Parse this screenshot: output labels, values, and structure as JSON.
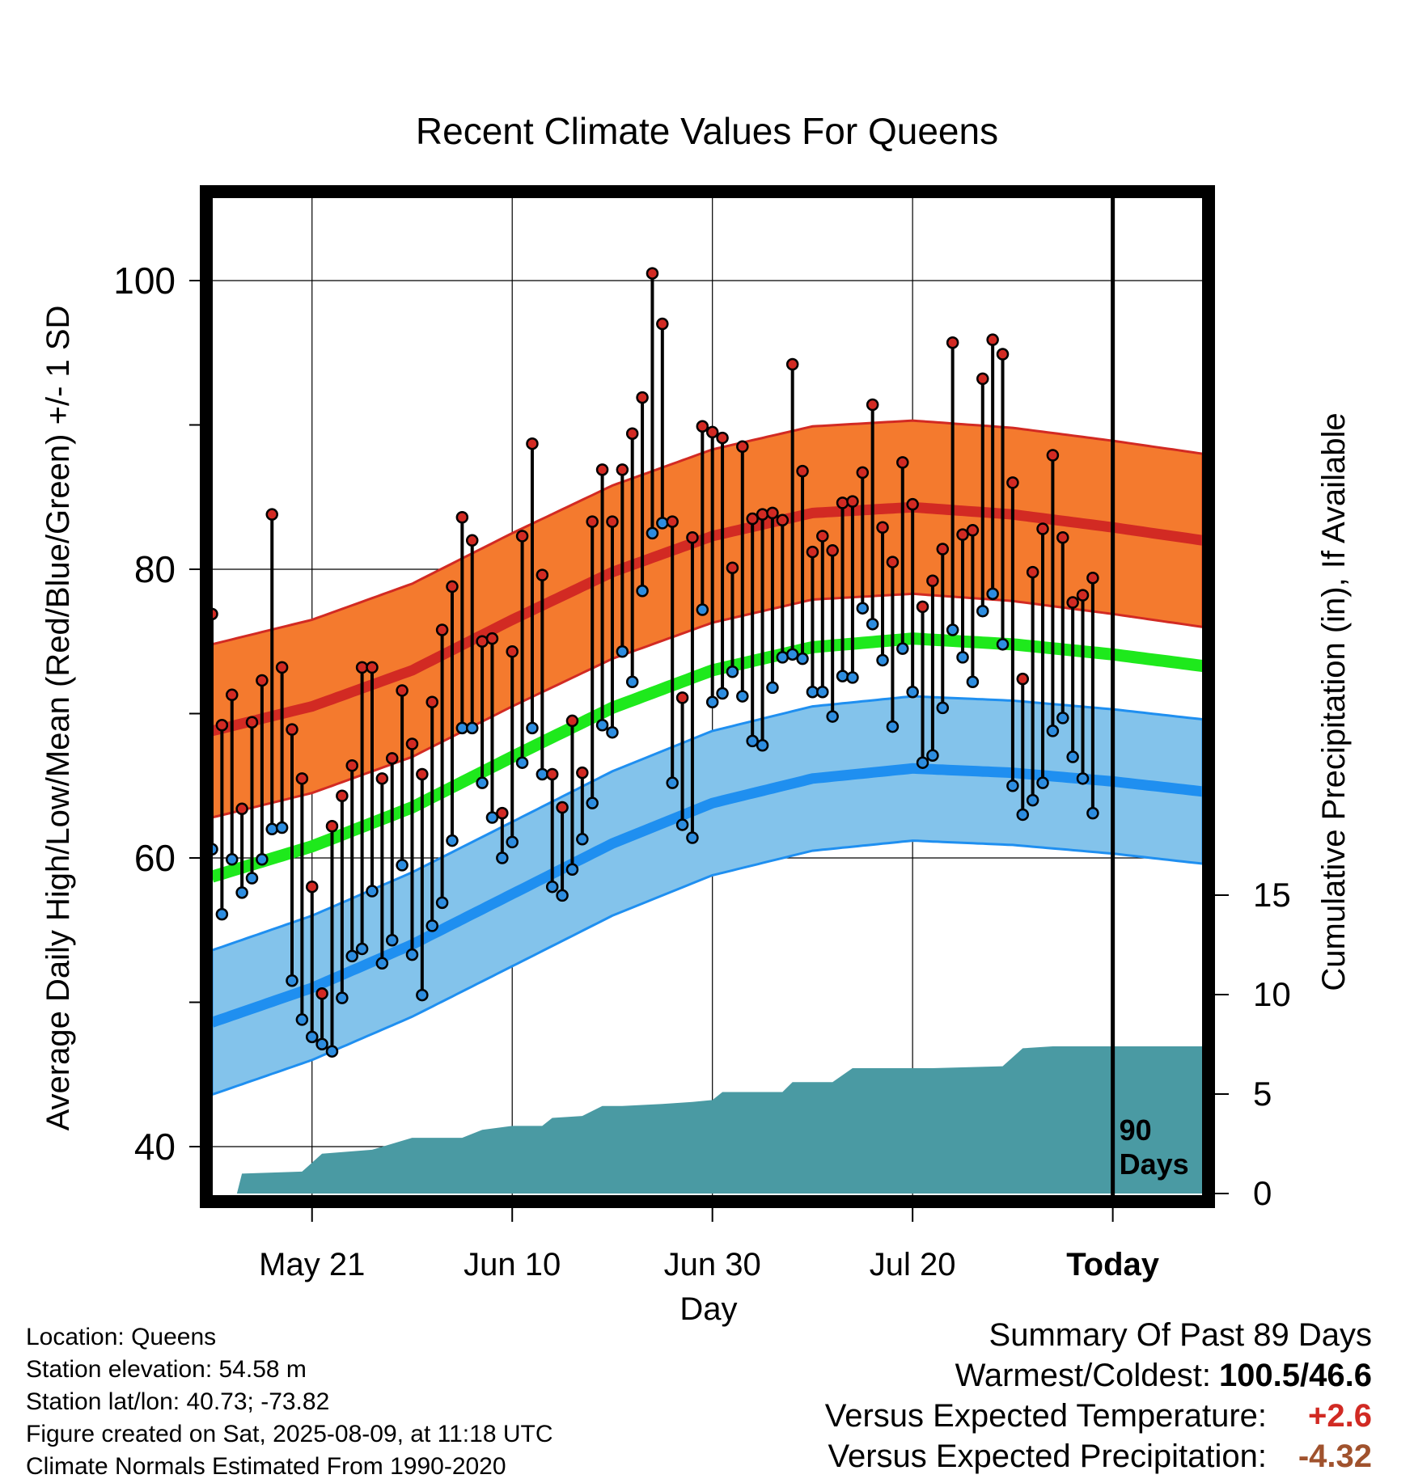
{
  "chart_data": {
    "type": "line",
    "title": "Recent Climate Values For Queens",
    "xlabel": "Day",
    "ylabel": "Average Daily High/Low/Mean (Red/Blue/Green) +/- 1 SD",
    "ylabel_right": "Cumulative Precipitation (in), If Available",
    "ylim": [
      37,
      107
    ],
    "ylim_right": [
      0,
      57
    ],
    "x_range_days_from_today": [
      -90,
      9
    ],
    "x_tick_labels": [
      {
        "label": "May 21",
        "day": -80
      },
      {
        "label": "Jun 10",
        "day": -60
      },
      {
        "label": "Jun 30",
        "day": -40
      },
      {
        "label": "Jul 20",
        "day": -20
      },
      {
        "label": "Today",
        "day": 0
      }
    ],
    "y_ticks": [
      40,
      60,
      80,
      100
    ],
    "y_ticks_right": [
      0,
      5,
      10,
      15
    ],
    "grid": true,
    "today_marker": {
      "day": 0,
      "label_line1": "90",
      "label_line2": "Days"
    },
    "normals": {
      "high_mean": [
        [
          -90,
          68.8
        ],
        [
          -80,
          70.5
        ],
        [
          -70,
          73.0
        ],
        [
          -60,
          76.5
        ],
        [
          -50,
          79.8
        ],
        [
          -40,
          82.3
        ],
        [
          -30,
          83.9
        ],
        [
          -20,
          84.3
        ],
        [
          -10,
          83.8
        ],
        [
          0,
          82.9
        ],
        [
          9,
          82.0
        ]
      ],
      "high_sd": 6.0,
      "low_mean": [
        [
          -90,
          48.6
        ],
        [
          -80,
          51.0
        ],
        [
          -70,
          54.0
        ],
        [
          -60,
          57.5
        ],
        [
          -50,
          61.0
        ],
        [
          -40,
          63.8
        ],
        [
          -30,
          65.5
        ],
        [
          -20,
          66.2
        ],
        [
          -10,
          65.9
        ],
        [
          0,
          65.3
        ],
        [
          9,
          64.6
        ]
      ],
      "low_sd": 5.0,
      "avg_mean": [
        [
          -90,
          58.7
        ],
        [
          -80,
          60.8
        ],
        [
          -70,
          63.5
        ],
        [
          -60,
          67.0
        ],
        [
          -50,
          70.4
        ],
        [
          -40,
          73.0
        ],
        [
          -30,
          74.6
        ],
        [
          -20,
          75.2
        ],
        [
          -10,
          74.8
        ],
        [
          0,
          74.1
        ],
        [
          9,
          73.3
        ]
      ]
    },
    "series": [
      {
        "name": "High",
        "values": [
          76.9,
          69.2,
          71.3,
          63.4,
          69.4,
          72.3,
          83.8,
          73.2,
          68.9,
          65.5,
          58.0,
          50.6,
          62.2,
          64.3,
          66.4,
          73.2,
          73.2,
          65.5,
          66.9,
          71.6,
          67.9,
          65.8,
          70.8,
          75.8,
          78.8,
          83.6,
          82.0,
          75.0,
          75.2,
          63.1,
          74.3,
          82.3,
          88.7,
          79.6,
          65.8,
          63.5,
          69.5,
          65.9,
          83.3,
          86.9,
          83.3,
          86.9,
          89.4,
          91.9,
          100.5,
          97.0,
          83.3,
          71.1,
          82.2,
          89.9,
          89.5,
          89.1,
          80.1,
          88.5,
          83.5,
          83.8,
          83.9,
          83.4,
          94.2,
          86.8,
          81.2,
          82.3,
          81.3,
          84.6,
          84.7,
          86.7,
          91.4,
          82.9,
          80.5,
          87.4,
          84.5,
          77.4,
          79.2,
          81.4,
          95.7,
          82.4,
          82.7,
          93.2,
          95.9,
          94.9,
          86.0,
          72.4,
          79.8,
          82.8,
          87.9,
          82.2,
          77.7,
          78.2,
          79.4
        ]
      },
      {
        "name": "Low",
        "values": [
          60.6,
          56.1,
          59.9,
          57.6,
          58.6,
          59.9,
          62.0,
          62.1,
          51.5,
          48.8,
          47.6,
          47.1,
          46.6,
          50.3,
          53.2,
          53.7,
          57.7,
          52.7,
          54.3,
          59.5,
          53.3,
          50.5,
          55.3,
          56.9,
          61.2,
          69.0,
          69.0,
          65.2,
          62.8,
          60.0,
          61.1,
          66.6,
          69.0,
          65.8,
          58.0,
          57.4,
          59.2,
          61.3,
          63.8,
          69.2,
          68.7,
          74.3,
          72.2,
          78.5,
          82.5,
          83.2,
          65.2,
          62.3,
          61.4,
          77.2,
          70.8,
          71.4,
          72.9,
          71.2,
          68.1,
          67.8,
          71.8,
          73.9,
          74.1,
          73.8,
          71.5,
          71.5,
          69.8,
          72.6,
          72.5,
          77.3,
          76.2,
          73.7,
          69.1,
          74.5,
          71.5,
          66.6,
          67.1,
          70.4,
          75.8,
          73.9,
          72.2,
          77.1,
          78.3,
          74.8,
          65.0,
          63.0,
          64.0,
          65.2,
          68.8,
          69.7,
          67.0,
          65.5,
          63.1
        ]
      },
      {
        "name": "Cumulative Precipitation",
        "values": [
          [
            -87.5,
            0.0
          ],
          [
            -87,
            1.0
          ],
          [
            -81,
            1.1
          ],
          [
            -79,
            2.0
          ],
          [
            -74,
            2.2
          ],
          [
            -72,
            2.5
          ],
          [
            -70,
            2.8
          ],
          [
            -65,
            2.8
          ],
          [
            -63,
            3.2
          ],
          [
            -60,
            3.4
          ],
          [
            -57,
            3.4
          ],
          [
            -56,
            3.8
          ],
          [
            -53,
            3.9
          ],
          [
            -51,
            4.4
          ],
          [
            -49,
            4.4
          ],
          [
            -45,
            4.5
          ],
          [
            -42,
            4.6
          ],
          [
            -40,
            4.7
          ],
          [
            -39,
            5.1
          ],
          [
            -33,
            5.1
          ],
          [
            -32,
            5.6
          ],
          [
            -28,
            5.6
          ],
          [
            -26,
            6.3
          ],
          [
            -18,
            6.3
          ],
          [
            -11,
            6.4
          ],
          [
            -9,
            7.3
          ],
          [
            -6,
            7.4
          ],
          [
            9,
            7.4
          ]
        ]
      }
    ]
  },
  "footer": {
    "location": "Location: Queens",
    "elevation": "Station elevation: 54.58 m",
    "latlon": "Station lat/lon: 40.73; -73.82",
    "created": "Figure created on Sat, 2025-08-09, at 11:18 UTC",
    "normals": "Climate Normals Estimated From 1990-2020"
  },
  "summary": {
    "heading": "Summary Of Past 89 Days",
    "extremes_label": "Warmest/Coldest:",
    "extremes_value": "100.5/46.6",
    "temp_label": "Versus Expected Temperature:",
    "temp_value": "+2.6",
    "precip_label": "Versus Expected Precipitation:",
    "precip_value": "-4.32"
  },
  "colors": {
    "high_band": "#f47a2e",
    "high_line": "#d22a23",
    "low_band": "#83c3eb",
    "low_line": "#1f8ff0",
    "avg_line": "#1ee91c",
    "precip": "#4a9aa3",
    "high_dot": "#d22a23",
    "low_dot": "#2d8de0"
  }
}
